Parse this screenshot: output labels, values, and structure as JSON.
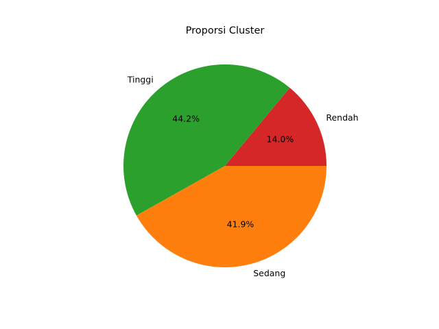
{
  "chart_data": {
    "type": "pie",
    "title": "Proporsi Cluster",
    "categories": [
      "Rendah",
      "Tinggi",
      "Sedang"
    ],
    "values": [
      14.0,
      44.2,
      41.9
    ],
    "percent_labels": [
      "14.0%",
      "44.2%",
      "41.9%"
    ],
    "colors": [
      "#d62728",
      "#2ca02c",
      "#ff7f0e"
    ],
    "start_angle_deg": 0,
    "direction": "counterclockwise",
    "legend": "none"
  }
}
